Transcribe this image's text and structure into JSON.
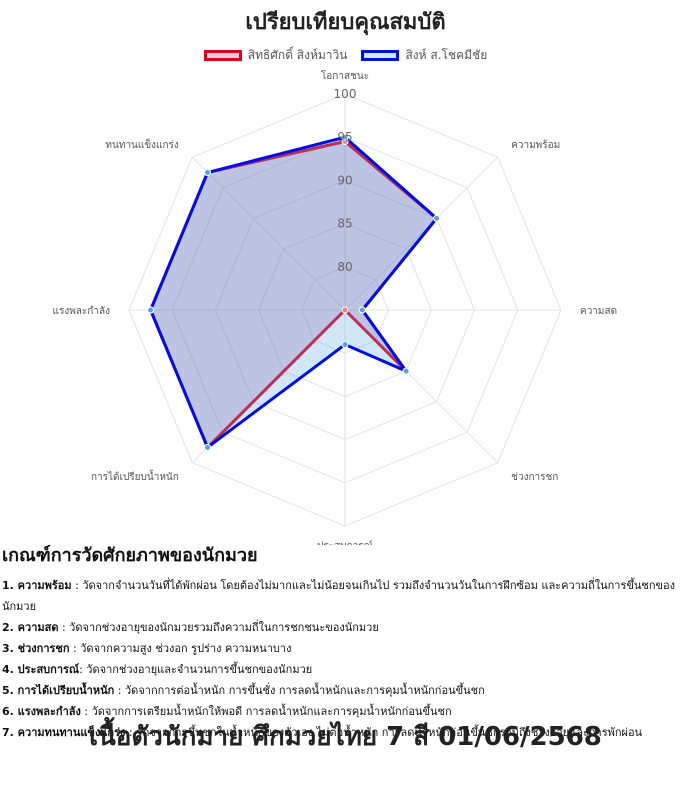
{
  "chart_data": {
    "type": "radar",
    "title": "เปรียบเทียบคุณสมบัติ",
    "axes": [
      "โอกาสชนะ",
      "ความพร้อม",
      "ความสด",
      "ช่วงการชก",
      "ประสบการณ์",
      "การได้เปรียบน้ำหนัก",
      "แรงพละกำลัง",
      "ทนทานแข็งแกร่ง"
    ],
    "r_range": [
      75,
      100
    ],
    "ticks": [
      "80",
      "85",
      "90",
      "95",
      "100"
    ],
    "tick_values": [
      80,
      85,
      90,
      95,
      100
    ],
    "series": [
      {
        "name": "สิทธิศักดิ์ สิงห์มาวิน",
        "color": "#e0001b",
        "values": [
          94.5,
          90,
          77,
          85,
          75,
          97.5,
          97.5,
          97.5
        ]
      },
      {
        "name": "สิงห์ ส.โชคมีชัย",
        "color": "#0010e0",
        "values": [
          95,
          90,
          77,
          85,
          79,
          97.5,
          97.5,
          97.5
        ]
      }
    ],
    "fill_colors": [
      "rgba(150,80,150,0.28)",
      "rgba(90,170,230,0.28)"
    ]
  },
  "criteria": {
    "heading": "เกณฑ์การวัดศักยภาพของนักมวย",
    "items": [
      {
        "num": "1.",
        "name": "ความพร้อม",
        "desc": " : วัดจากจำนวนวันที่ได้พักผ่อน โดยต้องไม่มากและไม่น้อยจนเกินไป รวมถึงจำนวนวันในการฝึกซ้อม และความถี่ในการขึ้นชกของนักมวย"
      },
      {
        "num": "2.",
        "name": "ความสด",
        "desc": " : วัดจากช่วงอายุของนักมวยรวมถึงความถี่ในการชกชนะของนักมวย"
      },
      {
        "num": "3.",
        "name": "ช่วงการชก",
        "desc": " : วัดจากความสูง ช่วงอก รูปร่าง ความหนาบาง"
      },
      {
        "num": "4.",
        "name": "ประสบการณ์",
        "desc": ": วัดจากช่วงอายุและจำนวนการขึ้นชกของนักมวย"
      },
      {
        "num": "5.",
        "name": "การได้เปรียบน้ำหนัก",
        "desc": " : วัดจากการต่อน้ำหนัก การขึ้นชั่ง การลดน้ำหนักและการคุมน้ำหนักก่อนขึ้นชก"
      },
      {
        "num": "6.",
        "name": "แรงพละกำลัง",
        "desc": " : วัดจากการเตรียมน้ำหนักให้พอดี การลดน้ำหนักและการคุมน้ำหนักก่อนขึ้นชก"
      },
      {
        "num": "7.",
        "name": "ความทนทานแข็งแกร่ง",
        "desc": " : วัดจากการขึ้นชกในน้ำหนักของตัวเอง ไม่ต่อน้ำหนัก การลดน้ำหนักก่อนขึ้นชกรวมถึงช่วงอายุและการพักผ่อน"
      }
    ]
  },
  "footer": {
    "title": "เนื้อตัวนักมาย ศึกมวยไทย 7 สี 01/06/2568"
  },
  "colors": {
    "grid": "#e3e3e3",
    "axis_label": "#555555",
    "tick_label": "#666666"
  }
}
